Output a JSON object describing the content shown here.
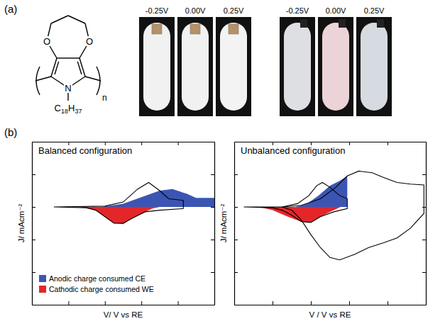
{
  "panel_labels": [
    "(a)",
    "(b)"
  ],
  "structure": {
    "atoms": [
      "O",
      "O",
      "N"
    ],
    "substituent": "C18H37",
    "repeat": "n"
  },
  "photo_sets": [
    {
      "labels": [
        "-0.25V",
        "0.00V",
        "0.25V"
      ]
    },
    {
      "labels": [
        "-0.25V",
        "0.00V",
        "0.25V"
      ]
    }
  ],
  "chart_data": [
    {
      "type": "line",
      "title": "Balanced configuration",
      "xlabel": "V/ V vs RE",
      "ylabel": "J/ mAcm⁻²",
      "xlim": [
        0,
        10
      ],
      "xticks": [
        0,
        2,
        4,
        6,
        8,
        10
      ],
      "ylim": [
        -6,
        4
      ],
      "yticks": [
        -6,
        -4,
        -2,
        0,
        2,
        4
      ],
      "tick_labels": false,
      "legend": "lower left",
      "series": [
        {
          "name": "Anodic charge consumed CE",
          "type": "area",
          "color": "#3b55b3",
          "x": [
            3.8,
            5,
            6,
            7,
            7.7,
            8.5,
            9,
            10
          ],
          "values": [
            0,
            0.2,
            0.6,
            1.0,
            1.1,
            0.8,
            0.55,
            0.55
          ]
        },
        {
          "name": "Cathodic charge consumed WE",
          "type": "area",
          "color": "#e4262a",
          "x": [
            2.6,
            3.5,
            4.0,
            4.5,
            5.0,
            5.5,
            6.2,
            6.6,
            7
          ],
          "values": [
            0,
            -0.2,
            -0.6,
            -1.0,
            -1.05,
            -0.7,
            -0.3,
            -0.1,
            0
          ]
        },
        {
          "type": "line",
          "color": "#000000",
          "x": [
            1.2,
            4,
            5,
            5.8,
            6.4,
            7,
            7.5,
            8.3,
            8.3,
            7,
            6.2,
            5.5,
            5,
            4.5,
            4,
            3.5,
            3,
            1.2
          ],
          "values": [
            0,
            0.05,
            0.3,
            1.1,
            1.5,
            1.0,
            0.5,
            0.4,
            -0.1,
            -0.2,
            -0.3,
            -0.7,
            -1.0,
            -1.0,
            -0.6,
            -0.2,
            -0.05,
            0
          ]
        }
      ]
    },
    {
      "type": "line",
      "title": "Unbalanced configuration",
      "xlabel": "V / V vs RE",
      "ylabel": "J/ mAcm⁻²",
      "xlim": [
        0,
        10
      ],
      "xticks": [
        0,
        2,
        4,
        6,
        8,
        10
      ],
      "ylim": [
        -6,
        4
      ],
      "yticks": [
        -6,
        -4,
        -2,
        0,
        2,
        4
      ],
      "tick_labels": false,
      "series": [
        {
          "type": "area",
          "color": "#3b55b3",
          "x": [
            3.2,
            3.8,
            4.4,
            5.0,
            5.5,
            5.9
          ],
          "values": [
            0,
            0.2,
            0.7,
            1.3,
            1.6,
            1.9
          ]
        },
        {
          "type": "area",
          "color": "#e4262a",
          "x": [
            1.3,
            2.0,
            2.8,
            3.5,
            4.0,
            4.5,
            5.0,
            5.55
          ],
          "values": [
            0,
            -0.2,
            -0.6,
            -0.9,
            -0.95,
            -0.6,
            -0.3,
            0
          ]
        },
        {
          "type": "line",
          "color": "#000000",
          "x": [
            0.5,
            2.5,
            3.3,
            3.9,
            4.3,
            4.6,
            5.0,
            5.5,
            5.9,
            5.9,
            5.2,
            4.5,
            4.0,
            3.5,
            3.0,
            2.5,
            2.0,
            0.5
          ],
          "values": [
            0,
            0,
            0.2,
            0.7,
            1.3,
            1.5,
            1.2,
            0.7,
            0.5,
            -0.1,
            -0.3,
            -0.6,
            -0.95,
            -0.9,
            -0.5,
            -0.2,
            -0.05,
            0
          ]
        },
        {
          "type": "line",
          "color": "#000000",
          "x": [
            2.5,
            3.5,
            4.5,
            5.3,
            5.9,
            6.5,
            7.2,
            7.8,
            8.5,
            9.2,
            9.9,
            9.9,
            9.2,
            8.5,
            7.8,
            7.0,
            6.3,
            5.5,
            5.0,
            4.5,
            4.0,
            3.5,
            3.0,
            2.5
          ],
          "values": [
            0,
            0.1,
            0.5,
            1.2,
            1.9,
            2.2,
            2.1,
            1.8,
            1.5,
            1.4,
            1.35,
            -0.4,
            -1.3,
            -1.9,
            -2.2,
            -2.5,
            -2.9,
            -3.25,
            -3.1,
            -2.5,
            -1.7,
            -0.8,
            -0.2,
            0
          ]
        }
      ]
    }
  ]
}
